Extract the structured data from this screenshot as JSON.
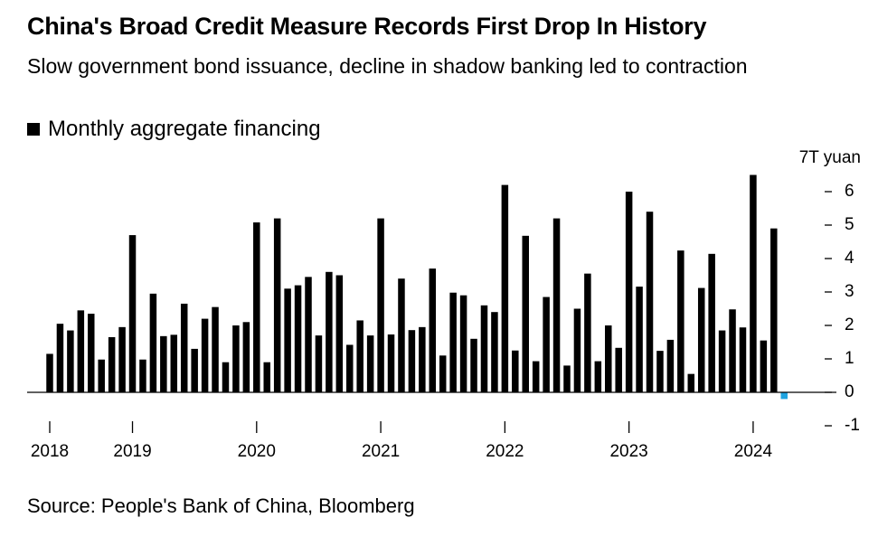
{
  "chart_data": {
    "type": "bar",
    "title": "China's Broad Credit Measure Records First Drop In History",
    "subtitle": "Slow government bond issuance, decline in shadow banking led to contraction",
    "source": "Source: People's Bank of China, Bloomberg",
    "categories": [
      "2018",
      null,
      null,
      null,
      null,
      null,
      null,
      null,
      "2019",
      null,
      null,
      null,
      null,
      null,
      null,
      null,
      null,
      null,
      null,
      null,
      "2020",
      null,
      null,
      null,
      null,
      null,
      null,
      null,
      null,
      null,
      null,
      null,
      "2021",
      null,
      null,
      null,
      null,
      null,
      null,
      null,
      null,
      null,
      null,
      null,
      "2022",
      null,
      null,
      null,
      null,
      null,
      null,
      null,
      null,
      null,
      null,
      null,
      "2023",
      null,
      null,
      null,
      null,
      null,
      null,
      null,
      null,
      null,
      null,
      null,
      "2024",
      null,
      null,
      null
    ],
    "series": [
      {
        "name": "Monthly aggregate financing",
        "color": "#000000",
        "negative_color": "#1fa3e0",
        "values": [
          1.15,
          2.05,
          1.85,
          2.45,
          2.35,
          0.98,
          1.65,
          1.95,
          4.7,
          0.98,
          2.95,
          1.68,
          1.72,
          2.65,
          1.3,
          2.2,
          2.55,
          0.9,
          2.0,
          2.1,
          5.08,
          0.9,
          5.2,
          3.1,
          3.2,
          3.45,
          1.7,
          3.6,
          3.5,
          1.42,
          2.15,
          1.7,
          5.2,
          1.73,
          3.4,
          1.86,
          1.95,
          3.7,
          1.1,
          2.98,
          2.9,
          1.6,
          2.6,
          2.4,
          6.2,
          1.25,
          4.68,
          0.93,
          2.85,
          5.2,
          0.8,
          2.5,
          3.55,
          0.93,
          2.0,
          1.33,
          6.0,
          3.16,
          5.4,
          1.24,
          1.57,
          4.24,
          0.55,
          3.12,
          4.14,
          1.85,
          2.48,
          1.94,
          6.5,
          1.55,
          4.9,
          -0.2
        ]
      }
    ],
    "ylim": [
      -1,
      7
    ],
    "yticks": [
      -1,
      0,
      1,
      2,
      3,
      4,
      5,
      6,
      {
        "value": 7,
        "label": "7T yuan"
      }
    ],
    "y_axis_side": "right"
  }
}
